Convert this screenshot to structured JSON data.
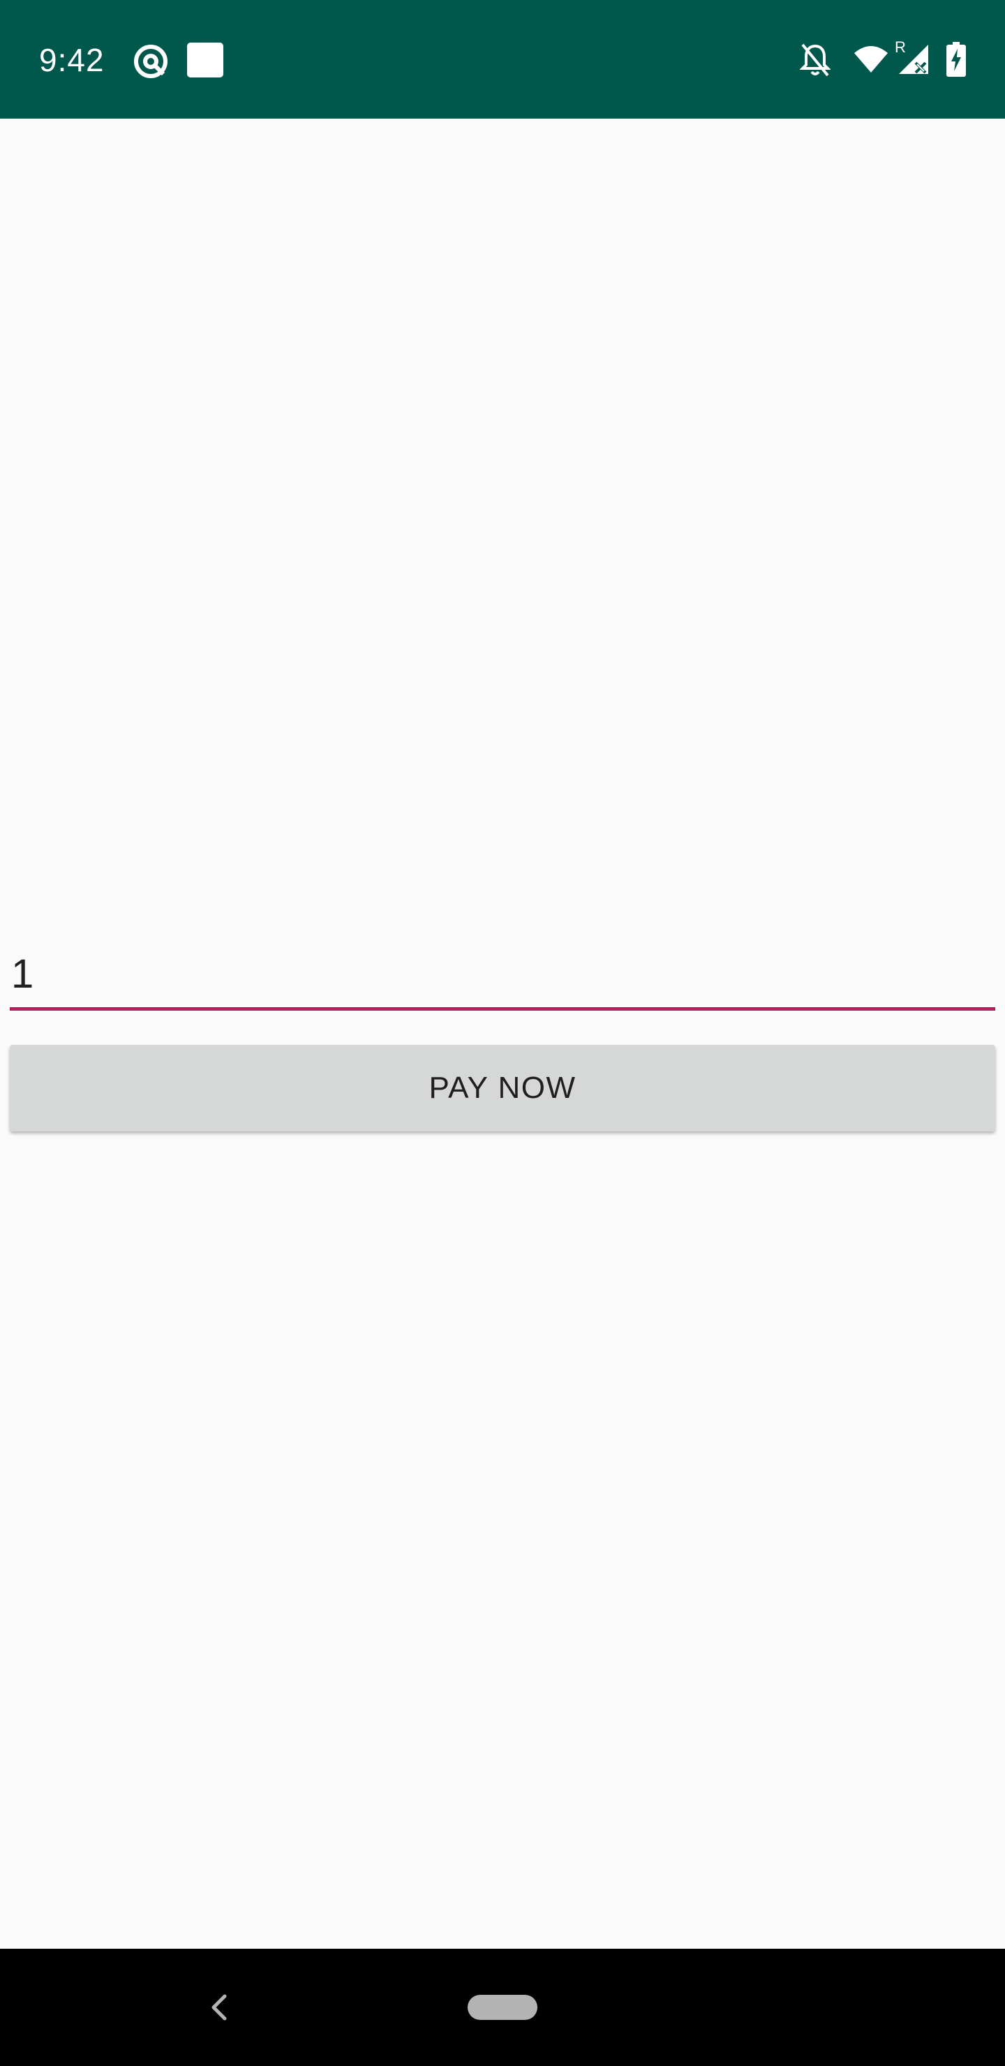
{
  "status_bar": {
    "time": "9:42",
    "background_color": "#00574b",
    "left_icons": [
      "at-sign-icon",
      "square-notification-icon"
    ],
    "right_icons": [
      "notifications-off-icon",
      "wifi-icon",
      "signal-roaming-no-data-icon",
      "battery-charging-icon"
    ],
    "roaming_label": "R"
  },
  "form": {
    "amount_value": "1",
    "underline_color": "#c2185b",
    "pay_button_label": "PAY NOW"
  },
  "nav_bar": {
    "icons": [
      "back-icon",
      "home-pill-icon"
    ]
  }
}
